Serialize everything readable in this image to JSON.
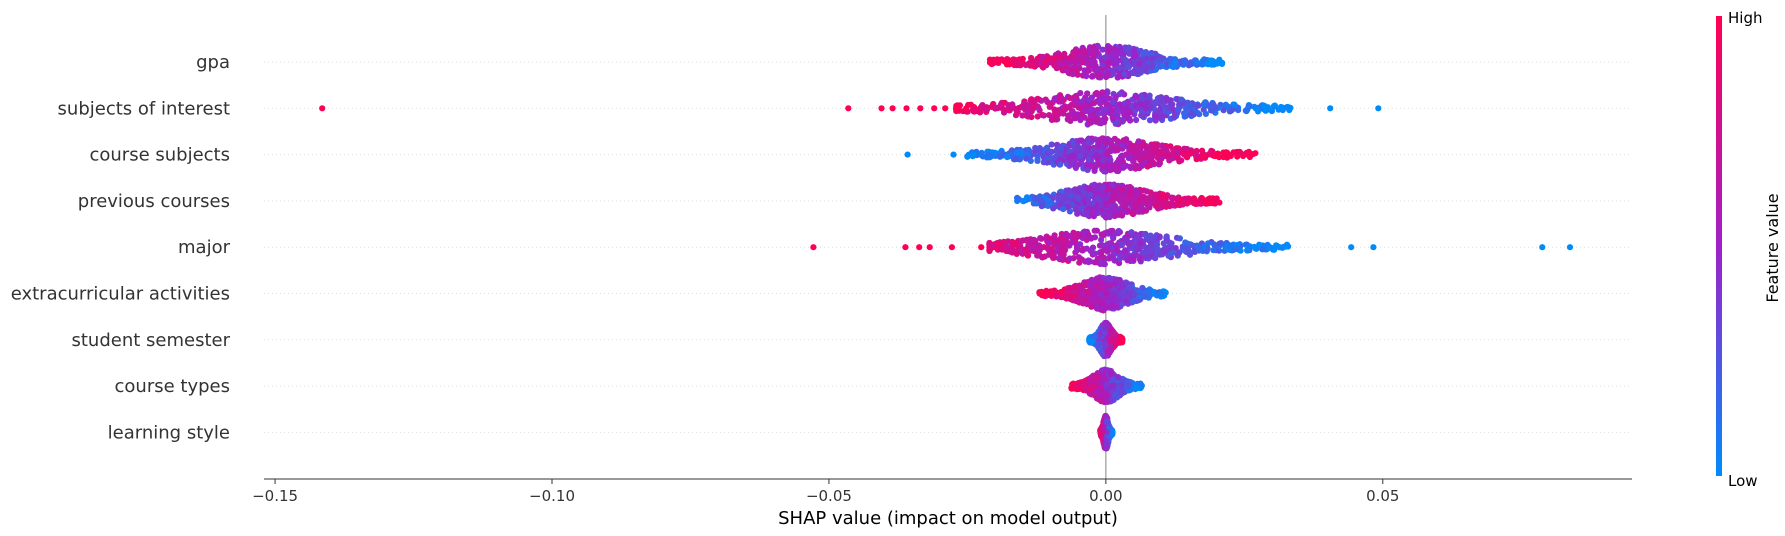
{
  "chart_data": {
    "type": "scatter",
    "subtype": "shap-beeswarm",
    "title": "",
    "xlabel": "SHAP value (impact on model output)",
    "ylabel": "",
    "xlim": [
      -0.152,
      0.095
    ],
    "xticks": [
      -0.15,
      -0.1,
      -0.05,
      0.0,
      0.05
    ],
    "xtick_labels": [
      "−0.15",
      "−0.10",
      "−0.05",
      "0.00",
      "0.05"
    ],
    "grid": false,
    "colorbar": {
      "label": "Feature value",
      "high_label": "High",
      "low_label": "Low",
      "high_color": "#ff0052",
      "mid_color": "#a020c8",
      "low_color": "#008bfb"
    },
    "features": [
      {
        "name": "gpa",
        "min": -0.021,
        "max": 0.021,
        "low_value_side": "positive",
        "outliers": []
      },
      {
        "name": "subjects of interest",
        "min": -0.027,
        "max": 0.034,
        "low_value_side": "positive",
        "outliers": [
          {
            "x": -0.1415,
            "c": "high"
          },
          {
            "x": -0.0465,
            "c": "high"
          },
          {
            "x": -0.0405,
            "c": "high"
          },
          {
            "x": -0.0385,
            "c": "high"
          },
          {
            "x": -0.036,
            "c": "high"
          },
          {
            "x": -0.0335,
            "c": "high"
          },
          {
            "x": -0.031,
            "c": "high"
          },
          {
            "x": -0.029,
            "c": "high"
          },
          {
            "x": 0.0405,
            "c": "low"
          },
          {
            "x": 0.0492,
            "c": "low"
          }
        ]
      },
      {
        "name": "course subjects",
        "min": -0.025,
        "max": 0.027,
        "low_value_side": "negative",
        "outliers": [
          {
            "x": -0.0358,
            "c": "low"
          },
          {
            "x": -0.0275,
            "c": "low"
          },
          {
            "x": -0.024,
            "c": "low"
          }
        ]
      },
      {
        "name": "previous courses",
        "min": -0.016,
        "max": 0.0205,
        "low_value_side": "negative",
        "outliers": []
      },
      {
        "name": "major",
        "min": -0.021,
        "max": 0.033,
        "low_value_side": "positive",
        "outliers": [
          {
            "x": -0.0528,
            "c": "high"
          },
          {
            "x": -0.0362,
            "c": "high"
          },
          {
            "x": -0.0337,
            "c": "high"
          },
          {
            "x": -0.0318,
            "c": "high"
          },
          {
            "x": -0.0278,
            "c": "high"
          },
          {
            "x": -0.0225,
            "c": "high"
          },
          {
            "x": 0.0443,
            "c": "low"
          },
          {
            "x": 0.0483,
            "c": "low"
          },
          {
            "x": 0.0788,
            "c": "low"
          },
          {
            "x": 0.0838,
            "c": "low"
          }
        ]
      },
      {
        "name": "extracurricular activities",
        "min": -0.012,
        "max": 0.0108,
        "low_value_side": "positive",
        "outliers": []
      },
      {
        "name": "student semester",
        "min": -0.003,
        "max": 0.003,
        "low_value_side": "negative",
        "outliers": []
      },
      {
        "name": "course types",
        "min": -0.0062,
        "max": 0.0065,
        "low_value_side": "positive",
        "outliers": []
      },
      {
        "name": "learning style",
        "min": -0.001,
        "max": 0.0012,
        "low_value_side": "positive",
        "outliers": []
      }
    ]
  }
}
